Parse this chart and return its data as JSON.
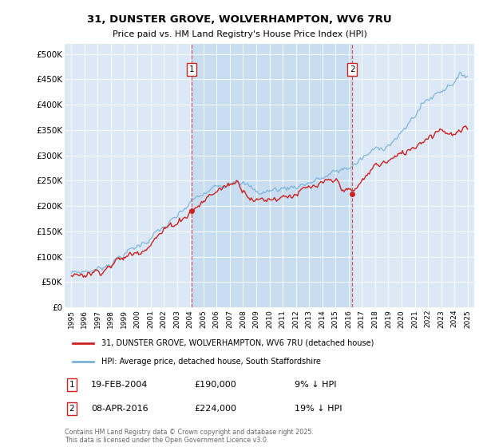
{
  "title_line1": "31, DUNSTER GROVE, WOLVERHAMPTON, WV6 7RU",
  "title_line2": "Price paid vs. HM Land Registry's House Price Index (HPI)",
  "ylabel_ticks": [
    "£0",
    "£50K",
    "£100K",
    "£150K",
    "£200K",
    "£250K",
    "£300K",
    "£350K",
    "£400K",
    "£450K",
    "£500K"
  ],
  "ytick_values": [
    0,
    50000,
    100000,
    150000,
    200000,
    250000,
    300000,
    350000,
    400000,
    450000,
    500000
  ],
  "ylim": [
    0,
    520000
  ],
  "xlim_start": 1994.5,
  "xlim_end": 2025.5,
  "plot_bg_color": "#dce8f5",
  "shade_bg_color": "#c8ddf0",
  "hpi_color": "#7ab3d8",
  "price_color": "#cc2222",
  "dashed_line_color": "#cc4444",
  "marker1_x": 2004.12,
  "marker2_x": 2016.27,
  "marker1_price": 190000,
  "marker2_price": 224000,
  "legend_line1": "31, DUNSTER GROVE, WOLVERHAMPTON, WV6 7RU (detached house)",
  "legend_line2": "HPI: Average price, detached house, South Staffordshire",
  "table_row1": [
    "1",
    "19-FEB-2004",
    "£190,000",
    "9% ↓ HPI"
  ],
  "table_row2": [
    "2",
    "08-APR-2016",
    "£224,000",
    "19% ↓ HPI"
  ],
  "footnote": "Contains HM Land Registry data © Crown copyright and database right 2025.\nThis data is licensed under the Open Government Licence v3.0.",
  "xtick_years": [
    1995,
    1996,
    1997,
    1998,
    1999,
    2000,
    2001,
    2002,
    2003,
    2004,
    2005,
    2006,
    2007,
    2008,
    2009,
    2010,
    2011,
    2012,
    2013,
    2014,
    2015,
    2016,
    2017,
    2018,
    2019,
    2020,
    2021,
    2022,
    2023,
    2024,
    2025
  ]
}
